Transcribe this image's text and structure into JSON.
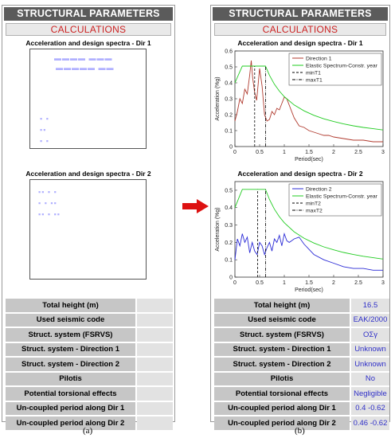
{
  "app_title": "STRUCTURAL PARAMETERS",
  "calculate_label": "CALCULATIONS",
  "charts": {
    "dir1_title": "Acceleration and design spectra - Dir 1",
    "dir2_title": "Acceleration and design spectra - Dir 2"
  },
  "parameters": [
    {
      "label": "Total height (m)",
      "value": "16.5"
    },
    {
      "label": "Used seismic code",
      "value": "EAK/2000"
    },
    {
      "label": "Struct. system (FSRVS)",
      "value": "ΟΣγ"
    },
    {
      "label": "Struct. system - Direction 1",
      "value": "Unknown"
    },
    {
      "label": "Struct. system - Direction 2",
      "value": "Unknown"
    },
    {
      "label": "Pilotis",
      "value": "No"
    },
    {
      "label": "Potential torsional effects",
      "value": "Negligible"
    },
    {
      "label": "Un-coupled period along Dir 1",
      "value": "0.4 -0.62"
    },
    {
      "label": "Un-coupled period along Dir 2",
      "value": "0.46 -0.62"
    }
  ],
  "captions": {
    "a": "(a)",
    "b": "(b)"
  },
  "colors": {
    "title_bg": "#5b5b5b",
    "calc_text": "#cc2222",
    "label_bg": "#c6c6c6",
    "value_bg": "#e2e2e2",
    "value_text": "#3030c8",
    "arrow": "#dd1111",
    "dir1": "#b03a2e",
    "dir2": "#2b2bd6",
    "elastic": "#22cc22"
  },
  "chart_data": [
    {
      "type": "line",
      "title": "Acceleration and design spectra - Dir 1",
      "xlabel": "Period(sec)",
      "ylabel": "Acceleration (%g)",
      "xlim": [
        0,
        3
      ],
      "ylim": [
        0,
        0.6
      ],
      "xticks": [
        "0",
        "0.5",
        "1",
        "1.5",
        "2",
        "2.5",
        "3"
      ],
      "yticks": [
        "0",
        "0.1",
        "0.2",
        "0.3",
        "0.4",
        "0.5",
        "0.6"
      ],
      "grid": false,
      "legend_position": "top-right",
      "series": [
        {
          "name": "Direction 1",
          "color": "#b03a2e",
          "style": "solid",
          "x": [
            0,
            0.05,
            0.1,
            0.15,
            0.2,
            0.25,
            0.3,
            0.33,
            0.36,
            0.4,
            0.44,
            0.5,
            0.55,
            0.6,
            0.65,
            0.7,
            0.75,
            0.8,
            0.85,
            0.9,
            0.95,
            1.0,
            1.05,
            1.1,
            1.2,
            1.3,
            1.4,
            1.5,
            1.6,
            1.7,
            1.8,
            1.9,
            2.0,
            2.2,
            2.4,
            2.6,
            2.8,
            3.0
          ],
          "y": [
            0.16,
            0.22,
            0.3,
            0.27,
            0.36,
            0.33,
            0.45,
            0.54,
            0.43,
            0.34,
            0.29,
            0.49,
            0.38,
            0.2,
            0.16,
            0.17,
            0.22,
            0.2,
            0.24,
            0.23,
            0.27,
            0.31,
            0.3,
            0.26,
            0.18,
            0.13,
            0.12,
            0.1,
            0.09,
            0.08,
            0.07,
            0.07,
            0.06,
            0.05,
            0.04,
            0.04,
            0.03,
            0.03
          ]
        },
        {
          "name": "Elastic Spectrum-Constr. year",
          "color": "#22cc22",
          "style": "solid",
          "x": [
            0,
            0.15,
            0.62,
            0.7,
            0.8,
            0.9,
            1.0,
            1.2,
            1.4,
            1.6,
            1.8,
            2.0,
            2.2,
            2.4,
            2.6,
            2.8,
            3.0
          ],
          "y": [
            0.4,
            0.505,
            0.505,
            0.447,
            0.391,
            0.348,
            0.313,
            0.261,
            0.224,
            0.196,
            0.174,
            0.157,
            0.142,
            0.13,
            0.12,
            0.112,
            0.104
          ]
        },
        {
          "name": "minT1",
          "color": "#000000",
          "style": "dashed",
          "x": [
            0.4,
            0.4
          ],
          "y": [
            0,
            0.505
          ]
        },
        {
          "name": "maxT1",
          "color": "#000000",
          "style": "dashdot",
          "x": [
            0.62,
            0.62
          ],
          "y": [
            0,
            0.505
          ]
        }
      ]
    },
    {
      "type": "line",
      "title": "Acceleration and design spectra - Dir 2",
      "xlabel": "Period(sec)",
      "ylabel": "Acceleration (%g)",
      "xlim": [
        0,
        3
      ],
      "ylim": [
        0,
        0.55
      ],
      "xticks": [
        "0",
        "0.5",
        "1",
        "1.5",
        "2",
        "2.5",
        "3"
      ],
      "yticks": [
        "0",
        "0.1",
        "0.2",
        "0.3",
        "0.4",
        "0.5"
      ],
      "grid": false,
      "legend_position": "top-right",
      "series": [
        {
          "name": "Direction 2",
          "color": "#2b2bd6",
          "style": "solid",
          "x": [
            0,
            0.05,
            0.1,
            0.15,
            0.2,
            0.25,
            0.3,
            0.35,
            0.4,
            0.45,
            0.5,
            0.55,
            0.6,
            0.65,
            0.7,
            0.75,
            0.8,
            0.85,
            0.9,
            0.95,
            1.0,
            1.05,
            1.1,
            1.15,
            1.2,
            1.3,
            1.4,
            1.5,
            1.6,
            1.8,
            2.0,
            2.2,
            2.4,
            2.6,
            2.8,
            3.0
          ],
          "y": [
            0.1,
            0.22,
            0.18,
            0.25,
            0.2,
            0.23,
            0.14,
            0.2,
            0.15,
            0.13,
            0.2,
            0.18,
            0.13,
            0.17,
            0.2,
            0.15,
            0.22,
            0.2,
            0.24,
            0.18,
            0.25,
            0.21,
            0.2,
            0.21,
            0.22,
            0.23,
            0.19,
            0.16,
            0.13,
            0.1,
            0.08,
            0.06,
            0.05,
            0.05,
            0.04,
            0.04
          ]
        },
        {
          "name": "Elastic Spectrum-Constr. year",
          "color": "#22cc22",
          "style": "solid",
          "x": [
            0,
            0.15,
            0.62,
            0.7,
            0.8,
            0.9,
            1.0,
            1.2,
            1.4,
            1.6,
            1.8,
            2.0,
            2.2,
            2.4,
            2.6,
            2.8,
            3.0
          ],
          "y": [
            0.4,
            0.505,
            0.505,
            0.447,
            0.391,
            0.348,
            0.313,
            0.261,
            0.224,
            0.196,
            0.174,
            0.157,
            0.142,
            0.13,
            0.12,
            0.112,
            0.104
          ]
        },
        {
          "name": "minT2",
          "color": "#000000",
          "style": "dashed",
          "x": [
            0.46,
            0.46
          ],
          "y": [
            0,
            0.505
          ]
        },
        {
          "name": "maxT2",
          "color": "#000000",
          "style": "dashdot",
          "x": [
            0.62,
            0.62
          ],
          "y": [
            0,
            0.505
          ]
        }
      ]
    }
  ]
}
